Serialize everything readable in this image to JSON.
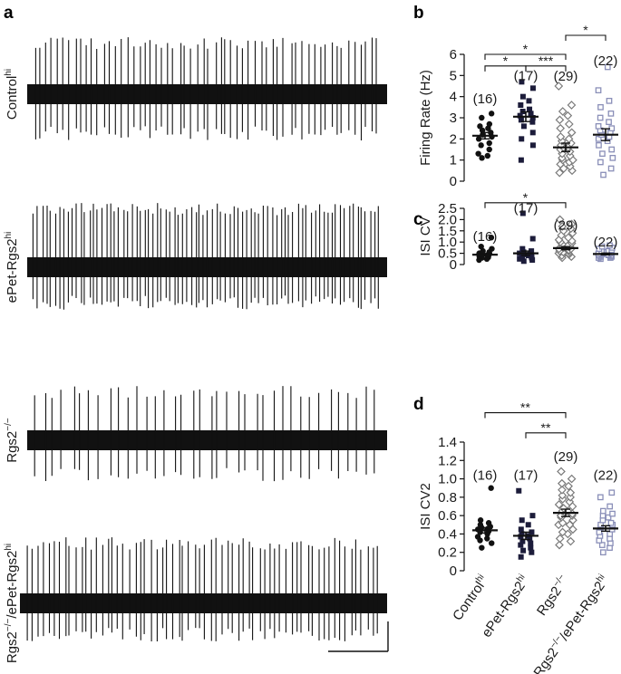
{
  "panel_a": {
    "letter": "a",
    "traces": [
      {
        "label_main": "Control",
        "label_sup": "hi",
        "spikes": 60
      },
      {
        "label_main": "ePet-Rgs2",
        "label_sup": "hi",
        "spikes": 82
      },
      {
        "label_main": "Rgs2",
        "label_sup": "−/−",
        "spikes": 38
      },
      {
        "label_main": "Rgs2",
        "label_sup": "−/−",
        "label_mid": "/ePet-Rgs2",
        "label_sup2": "hi",
        "spikes": 66
      }
    ]
  },
  "groups": [
    {
      "main": "Control",
      "sup": "hi"
    },
    {
      "main": "ePet-Rgs2",
      "sup": "hi"
    },
    {
      "main": "Rgs2",
      "sup": "−/−"
    },
    {
      "main": "Rgs2",
      "sup": "−/−",
      "mid": "/ePet-Rgs2",
      "sup2": "hi"
    }
  ],
  "colors": {
    "black": "#111111",
    "gray": "#7a7a7a",
    "slate": "#8a8fb8"
  },
  "chart_data": [
    {
      "type": "scatter",
      "letter": "b",
      "ylabel": "Firing Rate (Hz)",
      "ylim": [
        0,
        6
      ],
      "yticks": [
        "0",
        "1",
        "2",
        "3",
        "4",
        "5",
        "6"
      ],
      "ytick_values": [
        0,
        1,
        2,
        3,
        4,
        5,
        6
      ],
      "counts": [
        "(16)",
        "(17)",
        "(29)",
        "(22)"
      ],
      "count_values": [
        3.9,
        5.0,
        4.98,
        5.7
      ],
      "means": [
        2.15,
        3.05,
        1.6,
        2.2
      ],
      "sems": [
        0.15,
        0.23,
        0.2,
        0.28
      ],
      "series": [
        {
          "values": [
            1.1,
            1.2,
            1.3,
            1.5,
            1.7,
            1.8,
            2.0,
            2.1,
            2.2,
            2.3,
            2.4,
            2.5,
            2.6,
            2.7,
            3.0,
            3.2
          ]
        },
        {
          "values": [
            1.0,
            1.7,
            2.0,
            2.3,
            2.6,
            2.8,
            2.9,
            3.0,
            3.1,
            3.2,
            3.3,
            3.4,
            3.6,
            3.8,
            4.0,
            4.4,
            4.7
          ]
        },
        {
          "values": [
            0.4,
            0.5,
            0.6,
            0.7,
            0.8,
            0.9,
            1.0,
            1.0,
            1.1,
            1.2,
            1.3,
            1.4,
            1.5,
            1.5,
            1.6,
            1.6,
            1.7,
            1.8,
            1.9,
            2.0,
            2.1,
            2.3,
            2.5,
            2.7,
            2.9,
            3.1,
            3.3,
            3.6,
            4.5
          ]
        },
        {
          "values": [
            0.3,
            0.6,
            0.9,
            1.1,
            1.3,
            1.5,
            1.7,
            1.9,
            2.0,
            2.1,
            2.2,
            2.3,
            2.4,
            2.5,
            2.6,
            2.8,
            3.0,
            3.2,
            3.5,
            3.8,
            4.3,
            5.4
          ]
        }
      ],
      "sig": [
        {
          "from": 2,
          "to": 3,
          "level": 6.9,
          "label": "*"
        },
        {
          "from": 0,
          "to": 2,
          "level": 6.0,
          "label": "*"
        },
        {
          "from": 0,
          "to": 1,
          "level": 5.45,
          "label": "*"
        },
        {
          "from": 1,
          "to": 2,
          "level": 5.45,
          "label": "***"
        }
      ]
    },
    {
      "type": "scatter",
      "letter": "c",
      "ylabel": "ISI CV",
      "ylim": [
        0,
        2.5
      ],
      "yticks": [
        "0",
        "0.5",
        "1.0",
        "1.5",
        "2.0",
        "2.5"
      ],
      "ytick_values": [
        0,
        0.5,
        1.0,
        1.5,
        2.0,
        2.5
      ],
      "counts": [
        "(16)",
        "(17)",
        "(29)",
        "(22)"
      ],
      "count_values": [
        1.25,
        2.52,
        1.75,
        1.0
      ],
      "means": [
        0.44,
        0.5,
        0.73,
        0.47
      ],
      "sems": [
        0.05,
        0.1,
        0.07,
        0.04
      ],
      "series": [
        {
          "values": [
            0.2,
            0.25,
            0.3,
            0.32,
            0.35,
            0.38,
            0.4,
            0.42,
            0.45,
            0.48,
            0.5,
            0.55,
            0.6,
            0.7,
            0.8,
            1.2
          ]
        },
        {
          "values": [
            0.15,
            0.2,
            0.25,
            0.3,
            0.3,
            0.35,
            0.4,
            0.4,
            0.45,
            0.45,
            0.5,
            0.5,
            0.55,
            0.6,
            0.7,
            1.15,
            2.28
          ]
        },
        {
          "values": [
            0.3,
            0.35,
            0.4,
            0.45,
            0.5,
            0.5,
            0.55,
            0.6,
            0.6,
            0.65,
            0.7,
            0.7,
            0.75,
            0.8,
            0.8,
            0.85,
            0.9,
            0.95,
            1.0,
            1.05,
            1.1,
            1.2,
            1.3,
            1.4,
            1.5,
            1.6,
            1.7,
            1.8,
            2.0
          ]
        },
        {
          "values": [
            0.25,
            0.3,
            0.3,
            0.35,
            0.35,
            0.4,
            0.4,
            0.42,
            0.45,
            0.45,
            0.48,
            0.5,
            0.5,
            0.55,
            0.55,
            0.6,
            0.6,
            0.65,
            0.7,
            0.75,
            0.8,
            0.85
          ]
        }
      ],
      "sig": [
        {
          "from": 0,
          "to": 2,
          "level": 2.75,
          "label": "*"
        }
      ]
    },
    {
      "type": "scatter",
      "letter": "d",
      "ylabel": "ISI CV2",
      "ylim": [
        0,
        1.4
      ],
      "yticks": [
        "0",
        "0.2",
        "0.4",
        "0.6",
        "0.8",
        "1.0",
        "1.2",
        "1.4"
      ],
      "ytick_values": [
        0,
        0.2,
        0.4,
        0.6,
        0.8,
        1.0,
        1.2,
        1.4
      ],
      "counts": [
        "(16)",
        "(17)",
        "(29)",
        "(22)"
      ],
      "count_values": [
        1.04,
        1.04,
        1.24,
        1.04
      ],
      "means": [
        0.44,
        0.38,
        0.63,
        0.46
      ],
      "sems": [
        0.03,
        0.04,
        0.04,
        0.03
      ],
      "series": [
        {
          "values": [
            0.25,
            0.3,
            0.33,
            0.35,
            0.37,
            0.4,
            0.42,
            0.43,
            0.45,
            0.46,
            0.47,
            0.48,
            0.5,
            0.52,
            0.55,
            0.9
          ]
        },
        {
          "values": [
            0.15,
            0.2,
            0.22,
            0.25,
            0.28,
            0.3,
            0.32,
            0.35,
            0.37,
            0.38,
            0.4,
            0.42,
            0.45,
            0.5,
            0.55,
            0.6,
            0.87
          ]
        },
        {
          "values": [
            0.28,
            0.32,
            0.35,
            0.4,
            0.42,
            0.45,
            0.5,
            0.5,
            0.52,
            0.55,
            0.58,
            0.6,
            0.6,
            0.62,
            0.65,
            0.65,
            0.68,
            0.7,
            0.72,
            0.75,
            0.78,
            0.8,
            0.82,
            0.85,
            0.88,
            0.92,
            0.95,
            1.0,
            1.08
          ]
        },
        {
          "values": [
            0.2,
            0.25,
            0.28,
            0.3,
            0.33,
            0.35,
            0.38,
            0.4,
            0.42,
            0.45,
            0.47,
            0.5,
            0.5,
            0.52,
            0.55,
            0.58,
            0.6,
            0.62,
            0.65,
            0.7,
            0.8,
            0.85
          ]
        }
      ],
      "sig": [
        {
          "from": 0,
          "to": 2,
          "level": 1.72,
          "label": "**"
        },
        {
          "from": 1,
          "to": 2,
          "level": 1.5,
          "label": "**"
        }
      ]
    }
  ]
}
